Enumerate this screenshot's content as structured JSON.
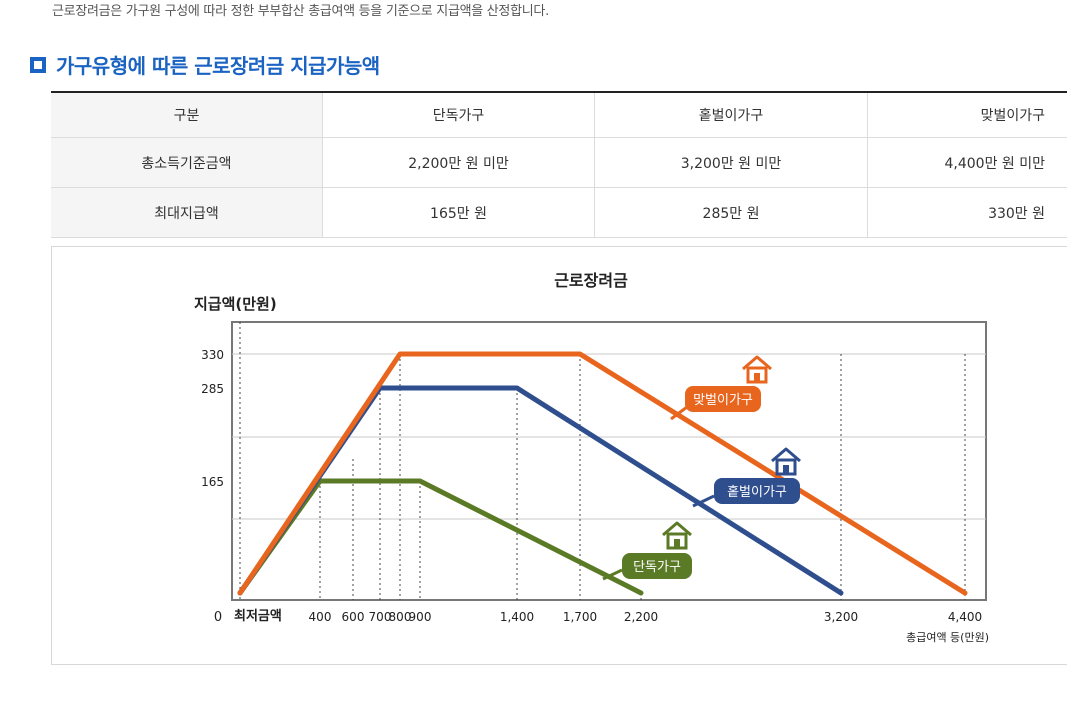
{
  "intro": "근로장려금은 가구원 구성에 따라 정한 부부합산 총급여액 등을 기준으로 지급액을 산정합니다.",
  "section_title": "가구유형에 따른 근로장려금 지급가능액",
  "table": {
    "headers": [
      "구분",
      "단독가구",
      "홑벌이가구",
      "맞벌이가구"
    ],
    "rows": [
      [
        "총소득기준금액",
        "2,200만 원 미만",
        "3,200만 원 미만",
        "4,400만 원 미만"
      ],
      [
        "최대지급액",
        "165만 원",
        "285만 원",
        "330만 원"
      ]
    ]
  },
  "colors": {
    "accent": "#1a63c2",
    "orange": "#e8651e",
    "navy": "#2f4e8e",
    "green": "#5b7a26"
  },
  "chart_data": {
    "type": "line",
    "title": "근로장려금",
    "ylabel": "지급액(만원)",
    "xlabel": "총급여액 등(만원)",
    "origin_label": "0",
    "min_label": "최저금액",
    "ylim": [
      0,
      330
    ],
    "y_ticks": [
      165,
      285,
      330
    ],
    "y_tick_labels": [
      "165",
      "285",
      "330"
    ],
    "x_ticks": [
      400,
      600,
      700,
      800,
      900,
      1400,
      1700,
      2200,
      3200,
      4400
    ],
    "x_tick_labels": [
      "400",
      "600",
      "700",
      "800",
      "900",
      "1,400",
      "1,700",
      "2,200",
      "3,200",
      "4,400"
    ],
    "grid": true,
    "series": [
      {
        "name": "맞벌이가구",
        "color": "#e8651e",
        "points": [
          [
            0,
            0
          ],
          [
            800,
            330
          ],
          [
            1700,
            330
          ],
          [
            4400,
            0
          ]
        ]
      },
      {
        "name": "홑벌이가구",
        "color": "#2f4e8e",
        "points": [
          [
            0,
            0
          ],
          [
            700,
            285
          ],
          [
            1400,
            285
          ],
          [
            3200,
            0
          ]
        ]
      },
      {
        "name": "단독가구",
        "color": "#5b7a26",
        "points": [
          [
            0,
            0
          ],
          [
            400,
            165
          ],
          [
            900,
            165
          ],
          [
            2200,
            0
          ]
        ]
      }
    ]
  }
}
